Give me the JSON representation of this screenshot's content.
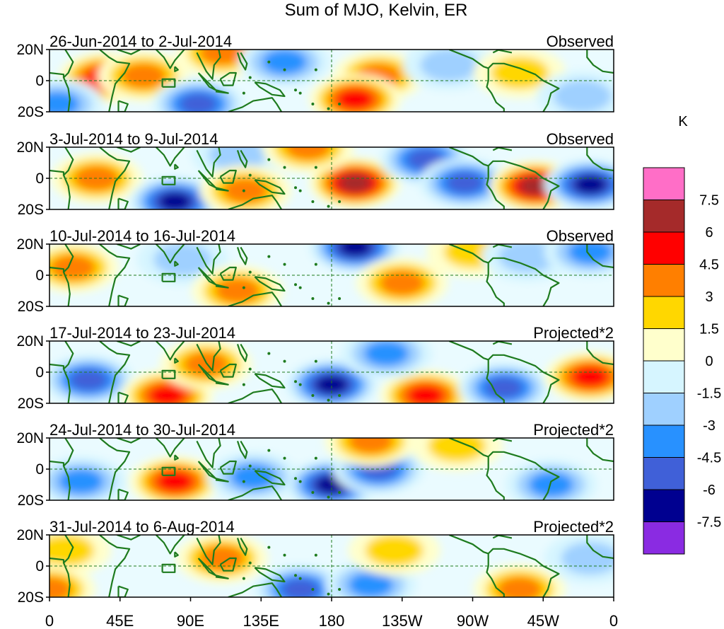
{
  "title": "Sum of MJO, Kelvin, ER",
  "colorbar": {
    "unit": "K",
    "labels": [
      "7.5",
      "6",
      "4.5",
      "3",
      "1.5",
      "0",
      "-1.5",
      "-3",
      "-4.5",
      "-6",
      "-7.5"
    ],
    "levels": [
      7.5,
      6,
      4.5,
      3,
      1.5,
      0,
      -1.5,
      -3,
      -4.5,
      -6,
      -7.5
    ],
    "colors": [
      "#ff6ec7",
      "#a52a2a",
      "#ff0000",
      "#ff7f00",
      "#ffd700",
      "#ffffcc",
      "#d6f5ff",
      "#9fd0ff",
      "#2891ff",
      "#4060d8",
      "#000090",
      "#8a2be2"
    ]
  },
  "x_ticks": [
    "0",
    "45E",
    "90E",
    "135E",
    "180",
    "135W",
    "90W",
    "45W",
    "0"
  ],
  "x_tick_lons": [
    0,
    45,
    90,
    135,
    180,
    225,
    270,
    315,
    360
  ],
  "y_ticks": [
    "20N",
    "0",
    "20S"
  ],
  "y_tick_lats": [
    20,
    0,
    -20
  ],
  "coastline_color": "#1e7b1e",
  "panels": [
    {
      "date_range": "26-Jun-2014 to 2-Jul-2014",
      "status": "Observed",
      "anomalies": [
        {
          "lon": 35,
          "lat": 2,
          "value": 5
        },
        {
          "lon": 60,
          "lat": 3,
          "value": 3.5
        },
        {
          "lon": 110,
          "lat": 18,
          "value": 3
        },
        {
          "lon": 95,
          "lat": -15,
          "value": -5.5
        },
        {
          "lon": 150,
          "lat": 12,
          "value": -3
        },
        {
          "lon": 210,
          "lat": 3,
          "value": 3
        },
        {
          "lon": 195,
          "lat": -12,
          "value": 5.5
        },
        {
          "lon": 255,
          "lat": 10,
          "value": -2
        },
        {
          "lon": 300,
          "lat": 5,
          "value": 2
        },
        {
          "lon": 340,
          "lat": -10,
          "value": -2.5
        },
        {
          "lon": 5,
          "lat": -15,
          "value": -3
        }
      ]
    },
    {
      "date_range": "3-Jul-2014 to 9-Jul-2014",
      "status": "Observed",
      "anomalies": [
        {
          "lon": 30,
          "lat": 0,
          "value": 4
        },
        {
          "lon": 80,
          "lat": -15,
          "value": -6
        },
        {
          "lon": 120,
          "lat": 15,
          "value": -2.5
        },
        {
          "lon": 125,
          "lat": -8,
          "value": 4
        },
        {
          "lon": 195,
          "lat": -3,
          "value": 6.5
        },
        {
          "lon": 240,
          "lat": 12,
          "value": -5
        },
        {
          "lon": 265,
          "lat": -3,
          "value": -5
        },
        {
          "lon": 310,
          "lat": -5,
          "value": 6
        },
        {
          "lon": 345,
          "lat": -4,
          "value": -6
        },
        {
          "lon": 165,
          "lat": 20,
          "value": 3
        }
      ]
    },
    {
      "date_range": "10-Jul-2014 to 16-Jul-2014",
      "status": "Observed",
      "anomalies": [
        {
          "lon": 15,
          "lat": 5,
          "value": 3
        },
        {
          "lon": 85,
          "lat": 10,
          "value": -1.5
        },
        {
          "lon": 120,
          "lat": -10,
          "value": 3
        },
        {
          "lon": 195,
          "lat": 18,
          "value": -6
        },
        {
          "lon": 225,
          "lat": -5,
          "value": 4
        },
        {
          "lon": 270,
          "lat": 15,
          "value": 1.5
        },
        {
          "lon": 305,
          "lat": 12,
          "value": -2.5
        },
        {
          "lon": 345,
          "lat": 15,
          "value": -3
        }
      ]
    },
    {
      "date_range": "17-Jul-2014 to 23-Jul-2014",
      "status": "Projected*2",
      "anomalies": [
        {
          "lon": 25,
          "lat": -5,
          "value": -5
        },
        {
          "lon": 75,
          "lat": -15,
          "value": 5
        },
        {
          "lon": 100,
          "lat": 5,
          "value": 3
        },
        {
          "lon": 180,
          "lat": -8,
          "value": -6
        },
        {
          "lon": 240,
          "lat": -15,
          "value": 5
        },
        {
          "lon": 290,
          "lat": -10,
          "value": -4.5
        },
        {
          "lon": 345,
          "lat": -3,
          "value": 5
        },
        {
          "lon": 215,
          "lat": 12,
          "value": -3
        }
      ]
    },
    {
      "date_range": "24-Jul-2014 to 30-Jul-2014",
      "status": "Projected*2",
      "anomalies": [
        {
          "lon": 20,
          "lat": -8,
          "value": -3
        },
        {
          "lon": 80,
          "lat": -8,
          "value": 5
        },
        {
          "lon": 130,
          "lat": -5,
          "value": -3
        },
        {
          "lon": 180,
          "lat": -10,
          "value": -6
        },
        {
          "lon": 210,
          "lat": 0,
          "value": -4.5
        },
        {
          "lon": 205,
          "lat": 18,
          "value": 3
        },
        {
          "lon": 260,
          "lat": 15,
          "value": 2
        },
        {
          "lon": 320,
          "lat": -10,
          "value": -3
        }
      ]
    },
    {
      "date_range": "31-Jul-2014 to 6-Aug-2014",
      "status": "Projected*2",
      "anomalies": [
        {
          "lon": 10,
          "lat": 10,
          "value": 2
        },
        {
          "lon": 110,
          "lat": 5,
          "value": 3
        },
        {
          "lon": 160,
          "lat": -15,
          "value": -5
        },
        {
          "lon": 205,
          "lat": -12,
          "value": -3
        },
        {
          "lon": 220,
          "lat": 10,
          "value": 2
        },
        {
          "lon": 300,
          "lat": -15,
          "value": 4
        },
        {
          "lon": 0,
          "lat": -15,
          "value": 4
        },
        {
          "lon": 345,
          "lat": 5,
          "value": -2
        }
      ]
    }
  ]
}
